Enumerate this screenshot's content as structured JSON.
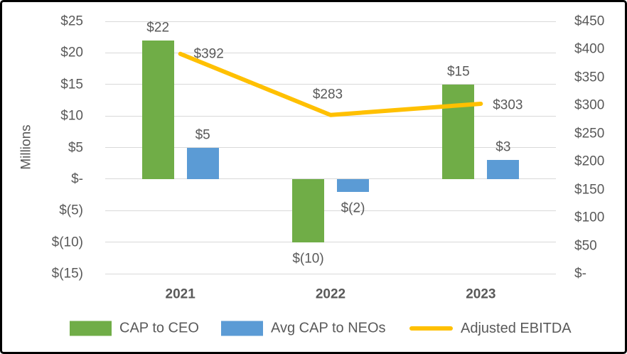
{
  "chart_data": {
    "type": "combo-bar-line",
    "categories": [
      "2021",
      "2022",
      "2023"
    ],
    "series": [
      {
        "name": "CAP to CEO",
        "chart": "bar",
        "axis": "left",
        "color": "#70AD47",
        "values": [
          22,
          -10,
          15
        ],
        "data_labels": [
          "$22",
          "$(10)",
          "$15"
        ]
      },
      {
        "name": "Avg CAP to NEOs",
        "chart": "bar",
        "axis": "left",
        "color": "#5B9BD5",
        "values": [
          5,
          -2,
          3
        ],
        "data_labels": [
          "$5",
          "$(2)",
          "$3"
        ]
      },
      {
        "name": "Adjusted EBITDA",
        "chart": "line",
        "axis": "right",
        "color": "#FFC000",
        "values": [
          392,
          283,
          303
        ],
        "data_labels": [
          "$392",
          "$283",
          "$303"
        ],
        "label_offsets": [
          [
            40,
            0
          ],
          [
            -4,
            -29
          ],
          [
            38,
            2
          ]
        ]
      }
    ],
    "left_axis": {
      "title": "Millions",
      "min": -15,
      "max": 25,
      "tick_labels": [
        "$25",
        "$20",
        "$15",
        "$10",
        "$5",
        "$-",
        "$(5)",
        "$(10)",
        "$(15)"
      ],
      "tick_values": [
        25,
        20,
        15,
        10,
        5,
        0,
        -5,
        -10,
        -15
      ]
    },
    "right_axis": {
      "min": 0,
      "max": 450,
      "tick_labels": [
        "$450",
        "$400",
        "$350",
        "$300",
        "$250",
        "$200",
        "$150",
        "$100",
        "$50",
        "$-"
      ],
      "tick_values": [
        450,
        400,
        350,
        300,
        250,
        200,
        150,
        100,
        50,
        0
      ]
    },
    "legend": [
      {
        "label": "CAP to CEO",
        "swatch": "bar",
        "color": "#70AD47"
      },
      {
        "label": "Avg CAP to NEOs",
        "swatch": "bar",
        "color": "#5B9BD5"
      },
      {
        "label": "Adjusted EBITDA",
        "swatch": "line",
        "color": "#FFC000"
      }
    ],
    "grid": true,
    "legend_position": "bottom",
    "colors": {
      "gridline": "#D9D9D9",
      "text": "#595959",
      "background": "#FFFFFF",
      "border": "#000000"
    }
  }
}
